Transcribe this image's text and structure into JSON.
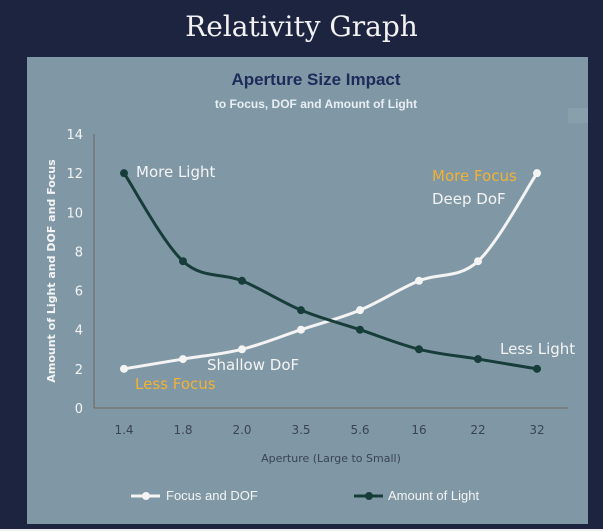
{
  "page_title": "Relativity Graph",
  "chart_data": {
    "type": "line",
    "title": "Aperture Size Impact",
    "subtitle": "to Focus, DOF and Amount of Light",
    "xlabel": "Aperture (Large to Small)",
    "ylabel": "Amount of Light and DOF and Focus",
    "categories": [
      "1.4",
      "1.8",
      "2.0",
      "3.5",
      "5.6",
      "16",
      "22",
      "32"
    ],
    "ylim": [
      0,
      14
    ],
    "yticks": [
      0,
      2,
      4,
      6,
      8,
      10,
      12,
      14
    ],
    "grid": false,
    "legend_position": "bottom",
    "series": [
      {
        "name": "Focus and DOF",
        "color": "#f4f4f4",
        "values": [
          2,
          2.5,
          3,
          4,
          5,
          6.5,
          7.5,
          12
        ]
      },
      {
        "name": "Amount of Light",
        "color": "#173d3a",
        "values": [
          12,
          7.5,
          6.5,
          5,
          4,
          3,
          2.5,
          2
        ]
      }
    ],
    "annotations": [
      {
        "text": "More Light",
        "color": "#f4f4f4"
      },
      {
        "text": "Less Focus",
        "color": "#f2b233"
      },
      {
        "text": "Shallow DoF",
        "color": "#f4f4f4"
      },
      {
        "text": "More Focus",
        "color": "#f2b233"
      },
      {
        "text": "Deep DoF",
        "color": "#f4f4f4"
      },
      {
        "text": "Less Light",
        "color": "#f4f4f4"
      }
    ]
  }
}
